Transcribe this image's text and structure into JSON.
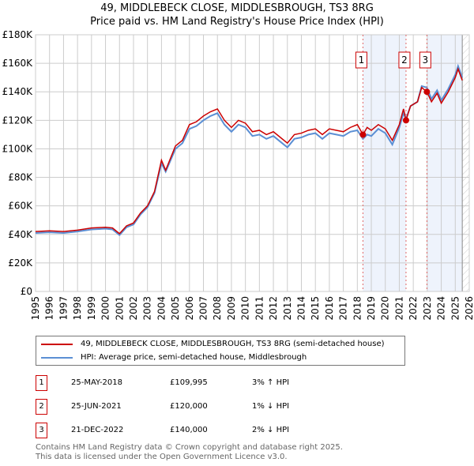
{
  "chart_data": {
    "type": "line",
    "title": "49, MIDDLEBECK CLOSE, MIDDLESBROUGH, TS3 8RG",
    "subtitle": "Price paid vs. HM Land Registry's House Price Index (HPI)",
    "xlim": [
      1995,
      2026
    ],
    "ylim": [
      0,
      180000
    ],
    "x_ticks": [
      "1995",
      "1996",
      "1997",
      "1998",
      "1999",
      "2000",
      "2001",
      "2002",
      "2003",
      "2004",
      "2005",
      "2006",
      "2007",
      "2008",
      "2009",
      "2010",
      "2011",
      "2012",
      "2013",
      "2014",
      "2015",
      "2016",
      "2017",
      "2018",
      "2019",
      "2020",
      "2021",
      "2022",
      "2023",
      "2024",
      "2025",
      "2026"
    ],
    "y_ticks": [
      {
        "v": 0,
        "label": "£0"
      },
      {
        "v": 20000,
        "label": "£20K"
      },
      {
        "v": 40000,
        "label": "£40K"
      },
      {
        "v": 60000,
        "label": "£60K"
      },
      {
        "v": 80000,
        "label": "£80K"
      },
      {
        "v": 100000,
        "label": "£100K"
      },
      {
        "v": 120000,
        "label": "£120K"
      },
      {
        "v": 140000,
        "label": "£140K"
      },
      {
        "v": 160000,
        "label": "£160K"
      },
      {
        "v": 180000,
        "label": "£180K"
      }
    ],
    "grid": true,
    "series": [
      {
        "name": "49, MIDDLEBECK CLOSE, MIDDLESBROUGH, TS3 8RG (semi-detached house)",
        "color": "#cc0000",
        "points": [
          [
            1995,
            42000
          ],
          [
            1996,
            42500
          ],
          [
            1997,
            42000
          ],
          [
            1998,
            43000
          ],
          [
            1999,
            44500
          ],
          [
            2000,
            45000
          ],
          [
            2000.5,
            44500
          ],
          [
            2001,
            40500
          ],
          [
            2001.5,
            46000
          ],
          [
            2002,
            48000
          ],
          [
            2002.5,
            55000
          ],
          [
            2003,
            60000
          ],
          [
            2003.5,
            70000
          ],
          [
            2004,
            92000
          ],
          [
            2004.3,
            85000
          ],
          [
            2005,
            102000
          ],
          [
            2005.5,
            106000
          ],
          [
            2006,
            117000
          ],
          [
            2006.5,
            119000
          ],
          [
            2007,
            123000
          ],
          [
            2007.5,
            126000
          ],
          [
            2008,
            128000
          ],
          [
            2008.5,
            120000
          ],
          [
            2009,
            115000
          ],
          [
            2009.5,
            120000
          ],
          [
            2010,
            118000
          ],
          [
            2010.5,
            112000
          ],
          [
            2011,
            113000
          ],
          [
            2011.5,
            110000
          ],
          [
            2012,
            112000
          ],
          [
            2012.5,
            108000
          ],
          [
            2013,
            104000
          ],
          [
            2013.5,
            110000
          ],
          [
            2014,
            111000
          ],
          [
            2014.5,
            113000
          ],
          [
            2015,
            114000
          ],
          [
            2015.5,
            110000
          ],
          [
            2016,
            114000
          ],
          [
            2016.5,
            113000
          ],
          [
            2017,
            112000
          ],
          [
            2017.5,
            115000
          ],
          [
            2018,
            117000
          ],
          [
            2018.4,
            109995
          ],
          [
            2018.7,
            115000
          ],
          [
            2019,
            113000
          ],
          [
            2019.5,
            117000
          ],
          [
            2020,
            114000
          ],
          [
            2020.5,
            106000
          ],
          [
            2021,
            117000
          ],
          [
            2021.3,
            128000
          ],
          [
            2021.48,
            120000
          ],
          [
            2021.8,
            130000
          ],
          [
            2022.3,
            133000
          ],
          [
            2022.6,
            143000
          ],
          [
            2022.97,
            140000
          ],
          [
            2023.3,
            133000
          ],
          [
            2023.7,
            139000
          ],
          [
            2024,
            132000
          ],
          [
            2024.5,
            140000
          ],
          [
            2025,
            150000
          ],
          [
            2025.2,
            156000
          ],
          [
            2025.5,
            148000
          ]
        ]
      },
      {
        "name": "HPI: Average price, semi-detached house, Middlesbrough",
        "color": "#5b8fd4",
        "points": [
          [
            1995,
            41000
          ],
          [
            1996,
            41500
          ],
          [
            1997,
            41000
          ],
          [
            1998,
            42000
          ],
          [
            1999,
            43500
          ],
          [
            2000,
            44000
          ],
          [
            2000.5,
            43500
          ],
          [
            2001,
            39500
          ],
          [
            2001.5,
            45000
          ],
          [
            2002,
            47000
          ],
          [
            2002.5,
            54000
          ],
          [
            2003,
            59000
          ],
          [
            2003.5,
            69000
          ],
          [
            2004,
            90000
          ],
          [
            2004.3,
            84000
          ],
          [
            2005,
            100000
          ],
          [
            2005.5,
            104000
          ],
          [
            2006,
            114000
          ],
          [
            2006.5,
            116000
          ],
          [
            2007,
            120000
          ],
          [
            2007.5,
            123000
          ],
          [
            2008,
            125000
          ],
          [
            2008.5,
            117000
          ],
          [
            2009,
            112000
          ],
          [
            2009.5,
            117000
          ],
          [
            2010,
            115000
          ],
          [
            2010.5,
            109000
          ],
          [
            2011,
            110000
          ],
          [
            2011.5,
            107000
          ],
          [
            2012,
            109000
          ],
          [
            2012.5,
            105000
          ],
          [
            2013,
            101000
          ],
          [
            2013.5,
            107000
          ],
          [
            2014,
            108000
          ],
          [
            2014.5,
            110000
          ],
          [
            2015,
            111000
          ],
          [
            2015.5,
            107000
          ],
          [
            2016,
            111000
          ],
          [
            2016.5,
            110000
          ],
          [
            2017,
            109000
          ],
          [
            2017.5,
            112000
          ],
          [
            2018,
            113000
          ],
          [
            2018.4,
            107000
          ],
          [
            2018.7,
            110000
          ],
          [
            2019,
            109000
          ],
          [
            2019.5,
            114000
          ],
          [
            2020,
            111000
          ],
          [
            2020.5,
            103000
          ],
          [
            2021,
            115000
          ],
          [
            2021.3,
            125000
          ],
          [
            2021.48,
            121000
          ],
          [
            2021.8,
            130000
          ],
          [
            2022.3,
            133000
          ],
          [
            2022.6,
            144000
          ],
          [
            2022.97,
            143000
          ],
          [
            2023.3,
            135000
          ],
          [
            2023.7,
            141000
          ],
          [
            2024,
            134000
          ],
          [
            2024.5,
            142000
          ],
          [
            2025,
            152000
          ],
          [
            2025.2,
            158000
          ],
          [
            2025.5,
            150000
          ]
        ]
      }
    ],
    "sales": [
      {
        "n": "1",
        "x": 2018.4,
        "y": 109995
      },
      {
        "n": "2",
        "x": 2021.48,
        "y": 120000
      },
      {
        "n": "3",
        "x": 2022.97,
        "y": 140000
      }
    ],
    "shaded": [
      [
        2018.4,
        2021.48
      ],
      [
        2022.97,
        2025.5
      ]
    ],
    "hatch_from": 2025.5,
    "legend_placement": "below"
  },
  "table": [
    {
      "n": "1",
      "date": "25-MAY-2018",
      "price": "£109,995",
      "hpi": "3% ↑ HPI"
    },
    {
      "n": "2",
      "date": "25-JUN-2021",
      "price": "£120,000",
      "hpi": "1% ↓ HPI"
    },
    {
      "n": "3",
      "date": "21-DEC-2022",
      "price": "£140,000",
      "hpi": "2% ↓ HPI"
    }
  ],
  "footer": [
    "Contains HM Land Registry data © Crown copyright and database right 2025.",
    "This data is licensed under the Open Government Licence v3.0."
  ]
}
